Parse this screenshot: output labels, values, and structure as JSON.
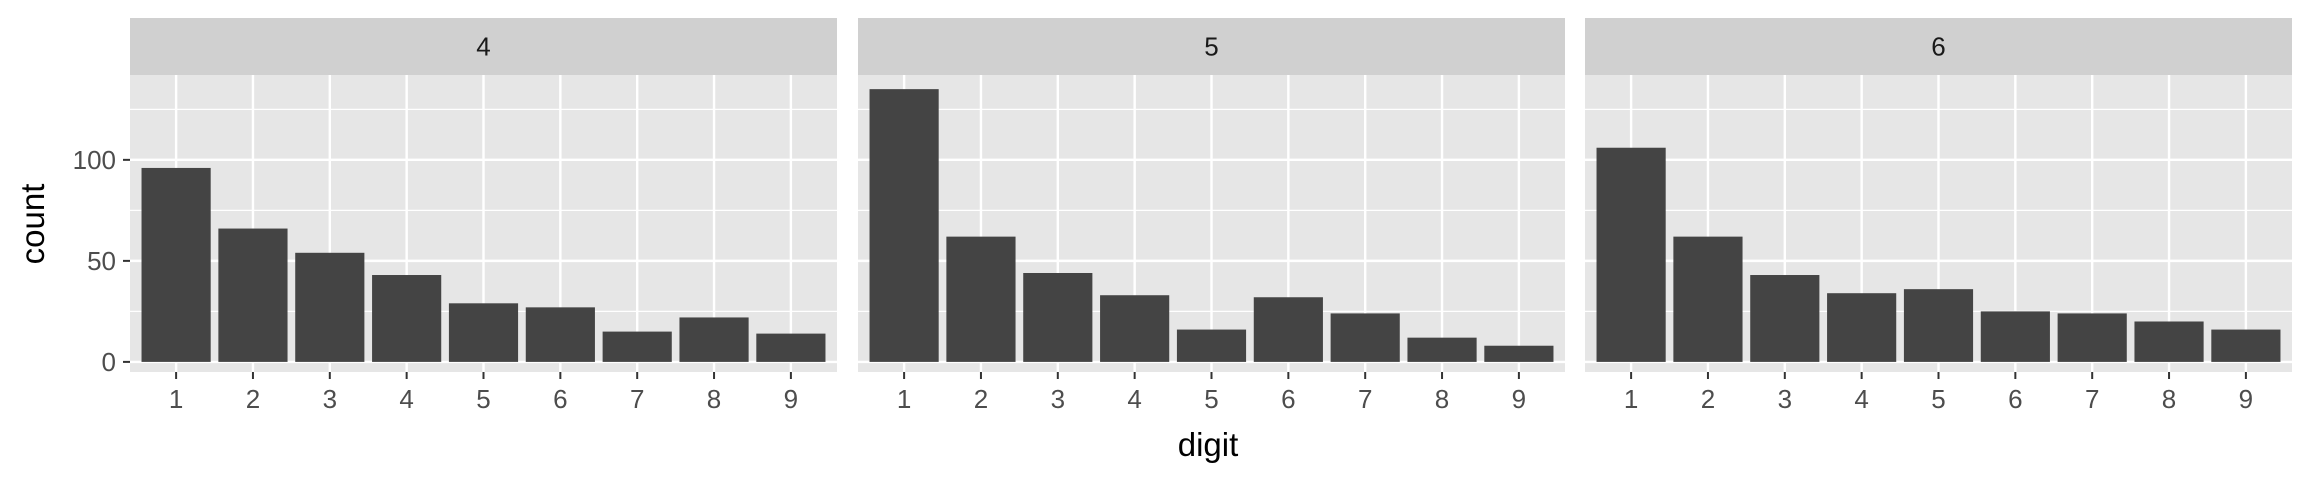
{
  "chart_data": {
    "type": "bar",
    "facet_variable": "",
    "xlabel": "digit",
    "ylabel": "count",
    "categories": [
      "1",
      "2",
      "3",
      "4",
      "5",
      "6",
      "7",
      "8",
      "9"
    ],
    "y_ticks": [
      0,
      50,
      100
    ],
    "ylim": [
      -5,
      142
    ],
    "grid": true,
    "legend": "none",
    "colors": {
      "bar": "#444444",
      "panel_background": "#e6e6e6",
      "strip_background": "#d0d0d0",
      "grid": "#ffffff"
    },
    "panels": [
      {
        "label": "4",
        "values": [
          96,
          66,
          54,
          43,
          29,
          27,
          15,
          22,
          14
        ]
      },
      {
        "label": "5",
        "values": [
          135,
          62,
          44,
          33,
          16,
          32,
          24,
          12,
          8
        ]
      },
      {
        "label": "6",
        "values": [
          106,
          62,
          43,
          34,
          36,
          25,
          24,
          20,
          16
        ]
      }
    ]
  }
}
